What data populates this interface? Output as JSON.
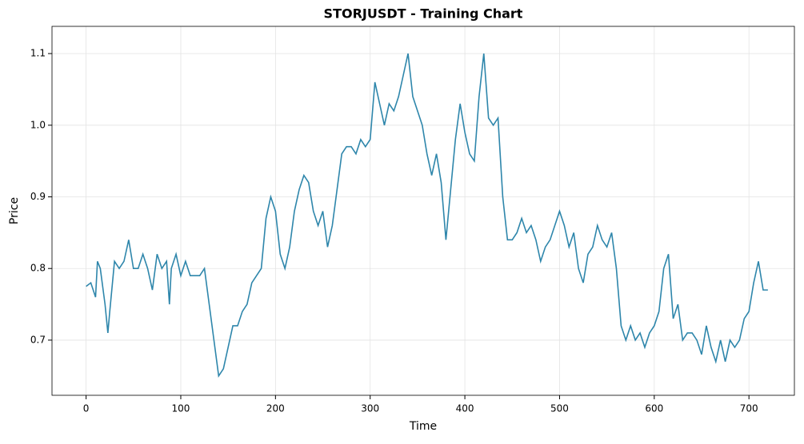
{
  "chart_data": {
    "type": "line",
    "title": "STORJUSDT - Training Chart",
    "x_label": "Time",
    "y_label": "Price",
    "x": [
      0,
      5,
      10,
      12,
      15,
      20,
      23,
      25,
      30,
      35,
      40,
      45,
      50,
      55,
      60,
      65,
      70,
      75,
      80,
      85,
      88,
      90,
      95,
      100,
      105,
      110,
      115,
      120,
      125,
      130,
      135,
      140,
      145,
      150,
      155,
      160,
      165,
      170,
      175,
      180,
      185,
      190,
      195,
      200,
      205,
      210,
      215,
      220,
      225,
      230,
      235,
      240,
      245,
      250,
      255,
      260,
      265,
      270,
      275,
      280,
      285,
      290,
      295,
      300,
      305,
      310,
      315,
      320,
      325,
      330,
      335,
      340,
      345,
      350,
      355,
      360,
      365,
      370,
      375,
      380,
      385,
      390,
      395,
      400,
      405,
      410,
      415,
      420,
      425,
      430,
      435,
      440,
      445,
      450,
      455,
      460,
      465,
      470,
      475,
      480,
      485,
      490,
      495,
      500,
      505,
      510,
      515,
      520,
      525,
      530,
      535,
      540,
      545,
      550,
      555,
      560,
      565,
      570,
      575,
      580,
      585,
      590,
      595,
      600,
      605,
      610,
      615,
      620,
      625,
      630,
      635,
      640,
      645,
      650,
      655,
      660,
      665,
      670,
      675,
      680,
      685,
      690,
      695,
      700,
      705,
      710,
      715,
      720
    ],
    "series": [
      {
        "name": "Price",
        "color": "#2e86ab",
        "values": [
          0.775,
          0.78,
          0.76,
          0.81,
          0.8,
          0.75,
          0.71,
          0.74,
          0.81,
          0.8,
          0.81,
          0.84,
          0.8,
          0.8,
          0.82,
          0.8,
          0.77,
          0.82,
          0.8,
          0.81,
          0.75,
          0.8,
          0.82,
          0.79,
          0.81,
          0.79,
          0.79,
          0.79,
          0.8,
          0.75,
          0.7,
          0.65,
          0.66,
          0.69,
          0.72,
          0.72,
          0.74,
          0.75,
          0.78,
          0.79,
          0.8,
          0.87,
          0.9,
          0.88,
          0.82,
          0.8,
          0.83,
          0.88,
          0.91,
          0.93,
          0.92,
          0.88,
          0.86,
          0.88,
          0.83,
          0.86,
          0.91,
          0.96,
          0.97,
          0.97,
          0.96,
          0.98,
          0.97,
          0.98,
          1.06,
          1.03,
          1.0,
          1.03,
          1.02,
          1.04,
          1.07,
          1.1,
          1.04,
          1.02,
          1.0,
          0.96,
          0.93,
          0.96,
          0.92,
          0.84,
          0.91,
          0.98,
          1.03,
          0.99,
          0.96,
          0.95,
          1.04,
          1.1,
          1.01,
          1.0,
          1.01,
          0.9,
          0.84,
          0.84,
          0.85,
          0.87,
          0.85,
          0.86,
          0.84,
          0.81,
          0.83,
          0.84,
          0.86,
          0.88,
          0.86,
          0.83,
          0.85,
          0.8,
          0.78,
          0.82,
          0.83,
          0.86,
          0.84,
          0.83,
          0.85,
          0.8,
          0.72,
          0.7,
          0.72,
          0.7,
          0.71,
          0.69,
          0.71,
          0.72,
          0.74,
          0.8,
          0.82,
          0.73,
          0.75,
          0.7,
          0.71,
          0.71,
          0.7,
          0.68,
          0.72,
          0.69,
          0.67,
          0.7,
          0.67,
          0.7,
          0.69,
          0.7,
          0.73,
          0.74,
          0.78,
          0.81,
          0.77,
          0.77
        ]
      }
    ],
    "xlim": [
      -36,
      748
    ],
    "ylim": [
      0.623,
      1.138
    ],
    "xticks": [
      0,
      100,
      200,
      300,
      400,
      500,
      600,
      700
    ],
    "yticks": [
      0.7,
      0.8,
      0.9,
      {
        "value": 1,
        "label": "1.0"
      },
      1.1
    ],
    "grid": true
  }
}
